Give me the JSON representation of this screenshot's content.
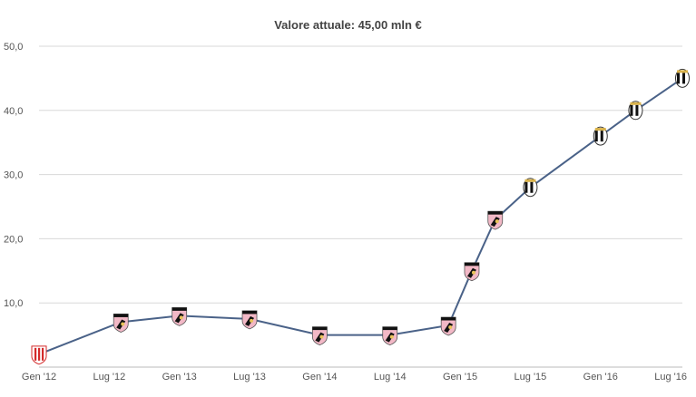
{
  "colors": {
    "line": "#4a6288",
    "grid": "#d8d8d8",
    "axis_text": "#555555",
    "palermo_pink": "#f2b8c6",
    "palermo_black": "#111111",
    "juve_black": "#111111",
    "juve_white": "#ffffff",
    "vicenza_red": "#d42a2a"
  },
  "chart_data": {
    "type": "line",
    "title": "Valore attuale: 45,00 mln €",
    "xlabel": "",
    "ylabel": "",
    "ylim": [
      0,
      50
    ],
    "grid": true,
    "yticks": [
      "10,0",
      "20,0",
      "30,0",
      "40,0",
      "50,0"
    ],
    "xticks": [
      "Gen '12",
      "Lug '12",
      "Gen '13",
      "Lug '13",
      "Gen '14",
      "Lug '14",
      "Gen '15",
      "Lug '15",
      "Gen '16",
      "Lug '16"
    ],
    "series": [
      {
        "values": [
          {
            "x": "2012-01",
            "y": 2.0,
            "icon": "vicenza-crest-icon"
          },
          {
            "x": "2012-08",
            "y": 7.0,
            "icon": "palermo-crest-icon"
          },
          {
            "x": "2013-01",
            "y": 8.0,
            "icon": "palermo-crest-icon"
          },
          {
            "x": "2013-07",
            "y": 7.5,
            "icon": "palermo-crest-icon"
          },
          {
            "x": "2014-01",
            "y": 5.0,
            "icon": "palermo-crest-icon"
          },
          {
            "x": "2014-07",
            "y": 5.0,
            "icon": "palermo-crest-icon"
          },
          {
            "x": "2014-12",
            "y": 6.5,
            "icon": "palermo-crest-icon"
          },
          {
            "x": "2015-02",
            "y": 15.0,
            "icon": "palermo-crest-icon"
          },
          {
            "x": "2015-04",
            "y": 23.0,
            "icon": "palermo-crest-icon"
          },
          {
            "x": "2015-07",
            "y": 28.0,
            "icon": "juventus-crest-icon"
          },
          {
            "x": "2016-01",
            "y": 36.0,
            "icon": "juventus-crest-icon"
          },
          {
            "x": "2016-04",
            "y": 40.0,
            "icon": "juventus-crest-icon"
          },
          {
            "x": "2016-08",
            "y": 45.0,
            "icon": "juventus-crest-icon"
          }
        ]
      }
    ]
  }
}
